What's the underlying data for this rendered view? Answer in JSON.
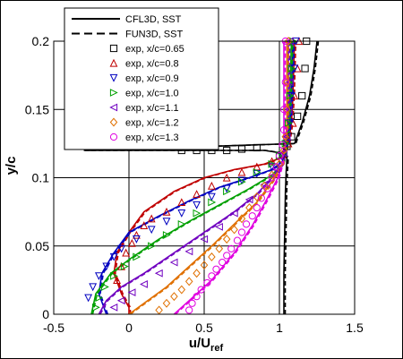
{
  "chart_data": {
    "type": "line",
    "xlabel": "u/U",
    "xlabel_sub": "ref",
    "ylabel": "y/c",
    "xlim": [
      -0.5,
      1.5
    ],
    "ylim": [
      0,
      0.2
    ],
    "x_ticks": [
      -0.5,
      0,
      0.5,
      1,
      1.5
    ],
    "x_tick_labels": [
      "-0.5",
      "0",
      "0.5",
      "1",
      "1.5"
    ],
    "y_ticks": [
      0,
      0.05,
      0.1,
      0.15,
      0.2
    ],
    "y_tick_labels": [
      "0",
      "0.05",
      "0.1",
      "0.15",
      "0.2"
    ],
    "grid": true,
    "legend_position": "top-left",
    "legend": [
      {
        "label": "CFL3D, SST",
        "style": "solid"
      },
      {
        "label": "FUN3D, SST",
        "style": "dashed"
      },
      {
        "label": "exp, x/c=0.65",
        "marker": "square",
        "color": "#000000"
      },
      {
        "label": "exp, x/c=0.8",
        "marker": "triangle-up",
        "color": "#c00000"
      },
      {
        "label": "exp, x/c=0.9",
        "marker": "triangle-down",
        "color": "#0000c0"
      },
      {
        "label": "exp, x/c=1.0",
        "marker": "triangle-right",
        "color": "#00a000"
      },
      {
        "label": "exp, x/c=1.1",
        "marker": "triangle-left",
        "color": "#7000c0"
      },
      {
        "label": "exp, x/c=1.2",
        "marker": "diamond",
        "color": "#e07000"
      },
      {
        "label": "exp, x/c=1.3",
        "marker": "circle",
        "color": "#e000e0"
      }
    ],
    "series": [
      {
        "color": "#000000",
        "marker": "square",
        "line": [
          [
            1.03,
            0.0
          ],
          [
            1.03,
            0.03
          ],
          [
            1.035,
            0.06
          ],
          [
            1.04,
            0.09
          ],
          [
            1.045,
            0.105
          ],
          [
            1.05,
            0.115
          ],
          [
            1.02,
            0.118
          ],
          [
            0.9,
            0.12
          ],
          [
            0.6,
            0.12
          ],
          [
            0,
            0.12
          ],
          [
            -0.3,
            0.12
          ],
          [
            1.1,
            0.125
          ],
          [
            1.15,
            0.14
          ],
          [
            1.2,
            0.16
          ],
          [
            1.23,
            0.18
          ],
          [
            1.25,
            0.2
          ]
        ],
        "exp": [
          [
            0.35,
            0.12
          ],
          [
            0.45,
            0.12
          ],
          [
            0.55,
            0.12
          ],
          [
            0.65,
            0.12
          ],
          [
            0.75,
            0.121
          ],
          [
            0.85,
            0.122
          ],
          [
            1.05,
            0.123
          ],
          [
            1.08,
            0.13
          ],
          [
            1.12,
            0.145
          ],
          [
            1.15,
            0.16
          ],
          [
            1.17,
            0.18
          ],
          [
            1.18,
            0.2
          ]
        ]
      },
      {
        "color": "#c00000",
        "marker": "triangle-up",
        "line": [
          [
            0.0,
            0.0
          ],
          [
            0.0,
            0.005
          ],
          [
            -0.05,
            0.015
          ],
          [
            -0.1,
            0.03
          ],
          [
            -0.08,
            0.045
          ],
          [
            0.0,
            0.06
          ],
          [
            0.1,
            0.075
          ],
          [
            0.3,
            0.09
          ],
          [
            0.5,
            0.1
          ],
          [
            0.7,
            0.106
          ],
          [
            0.9,
            0.11
          ],
          [
            1.02,
            0.115
          ],
          [
            1.06,
            0.125
          ],
          [
            1.08,
            0.14
          ],
          [
            1.09,
            0.16
          ],
          [
            1.1,
            0.2
          ]
        ],
        "exp": [
          [
            -0.08,
            0.025
          ],
          [
            -0.05,
            0.035
          ],
          [
            -0.02,
            0.045
          ],
          [
            0.02,
            0.052
          ],
          [
            0.05,
            0.058
          ],
          [
            0.1,
            0.065
          ],
          [
            0.15,
            0.07
          ],
          [
            0.25,
            0.075
          ],
          [
            0.35,
            0.082
          ],
          [
            0.45,
            0.088
          ],
          [
            0.55,
            0.094
          ],
          [
            0.65,
            0.1
          ],
          [
            0.75,
            0.104
          ],
          [
            0.85,
            0.108
          ],
          [
            0.95,
            0.112
          ],
          [
            1.02,
            0.117
          ],
          [
            1.06,
            0.125
          ],
          [
            1.09,
            0.14
          ],
          [
            1.1,
            0.16
          ],
          [
            1.12,
            0.18
          ],
          [
            1.13,
            0.2
          ]
        ]
      },
      {
        "color": "#0000c0",
        "marker": "triangle-down",
        "line": [
          [
            -0.15,
            0.0
          ],
          [
            -0.2,
            0.015
          ],
          [
            -0.18,
            0.03
          ],
          [
            -0.1,
            0.045
          ],
          [
            0.0,
            0.06
          ],
          [
            0.2,
            0.072
          ],
          [
            0.4,
            0.083
          ],
          [
            0.6,
            0.093
          ],
          [
            0.8,
            0.1
          ],
          [
            0.95,
            0.106
          ],
          [
            1.02,
            0.112
          ],
          [
            1.05,
            0.125
          ],
          [
            1.07,
            0.14
          ],
          [
            1.08,
            0.16
          ],
          [
            1.09,
            0.2
          ]
        ],
        "exp": [
          [
            -0.27,
            0.012
          ],
          [
            -0.24,
            0.02
          ],
          [
            -0.2,
            0.028
          ],
          [
            -0.15,
            0.035
          ],
          [
            -0.1,
            0.042
          ],
          [
            -0.05,
            0.048
          ],
          [
            0.05,
            0.055
          ],
          [
            0.15,
            0.062
          ],
          [
            0.25,
            0.068
          ],
          [
            0.35,
            0.074
          ],
          [
            0.45,
            0.08
          ],
          [
            0.55,
            0.086
          ],
          [
            0.65,
            0.092
          ],
          [
            0.75,
            0.098
          ],
          [
            0.85,
            0.103
          ],
          [
            0.95,
            0.108
          ],
          [
            1.02,
            0.115
          ],
          [
            1.05,
            0.125
          ],
          [
            1.07,
            0.14
          ],
          [
            1.08,
            0.16
          ],
          [
            1.1,
            0.18
          ],
          [
            1.11,
            0.2
          ]
        ]
      },
      {
        "color": "#00a000",
        "marker": "triangle-right",
        "line": [
          [
            -0.25,
            0.0
          ],
          [
            -0.22,
            0.015
          ],
          [
            -0.12,
            0.03
          ],
          [
            0.0,
            0.04
          ],
          [
            0.2,
            0.055
          ],
          [
            0.4,
            0.068
          ],
          [
            0.6,
            0.08
          ],
          [
            0.8,
            0.092
          ],
          [
            0.95,
            0.102
          ],
          [
            1.02,
            0.11
          ],
          [
            1.05,
            0.125
          ],
          [
            1.06,
            0.14
          ],
          [
            1.07,
            0.16
          ],
          [
            1.08,
            0.2
          ]
        ],
        "exp": [
          [
            -0.22,
            0.005
          ],
          [
            -0.2,
            0.012
          ],
          [
            -0.16,
            0.02
          ],
          [
            -0.1,
            0.028
          ],
          [
            -0.03,
            0.035
          ],
          [
            0.05,
            0.042
          ],
          [
            0.15,
            0.05
          ],
          [
            0.25,
            0.058
          ],
          [
            0.35,
            0.066
          ],
          [
            0.45,
            0.074
          ],
          [
            0.55,
            0.082
          ],
          [
            0.65,
            0.09
          ],
          [
            0.75,
            0.097
          ],
          [
            0.85,
            0.104
          ],
          [
            0.95,
            0.11
          ],
          [
            1.0,
            0.116
          ],
          [
            1.04,
            0.125
          ],
          [
            1.06,
            0.14
          ],
          [
            1.07,
            0.16
          ],
          [
            1.08,
            0.18
          ],
          [
            1.09,
            0.2
          ]
        ]
      },
      {
        "color": "#7000c0",
        "marker": "triangle-left",
        "line": [
          [
            -0.2,
            0.0
          ],
          [
            -0.15,
            0.01
          ],
          [
            -0.05,
            0.02
          ],
          [
            0.1,
            0.03
          ],
          [
            0.3,
            0.045
          ],
          [
            0.5,
            0.06
          ],
          [
            0.7,
            0.075
          ],
          [
            0.85,
            0.088
          ],
          [
            0.95,
            0.1
          ],
          [
            1.02,
            0.11
          ],
          [
            1.04,
            0.125
          ],
          [
            1.05,
            0.14
          ],
          [
            1.06,
            0.16
          ],
          [
            1.06,
            0.2
          ]
        ],
        "exp": [
          [
            -0.1,
            0.005
          ],
          [
            -0.05,
            0.01
          ],
          [
            0.02,
            0.016
          ],
          [
            0.1,
            0.022
          ],
          [
            0.2,
            0.03
          ],
          [
            0.3,
            0.038
          ],
          [
            0.4,
            0.046
          ],
          [
            0.5,
            0.055
          ],
          [
            0.6,
            0.064
          ],
          [
            0.7,
            0.074
          ],
          [
            0.8,
            0.084
          ],
          [
            0.9,
            0.095
          ],
          [
            0.98,
            0.106
          ],
          [
            1.03,
            0.118
          ],
          [
            1.05,
            0.13
          ],
          [
            1.06,
            0.15
          ],
          [
            1.07,
            0.17
          ],
          [
            1.07,
            0.2
          ]
        ]
      },
      {
        "color": "#e07000",
        "marker": "diamond",
        "line": [
          [
            0.0,
            0.0
          ],
          [
            0.1,
            0.008
          ],
          [
            0.25,
            0.02
          ],
          [
            0.4,
            0.035
          ],
          [
            0.55,
            0.05
          ],
          [
            0.7,
            0.066
          ],
          [
            0.85,
            0.082
          ],
          [
            0.95,
            0.097
          ],
          [
            1.02,
            0.11
          ],
          [
            1.04,
            0.125
          ],
          [
            1.05,
            0.14
          ],
          [
            1.05,
            0.16
          ],
          [
            1.05,
            0.2
          ]
        ],
        "exp": [
          [
            0.2,
            0.003
          ],
          [
            0.25,
            0.008
          ],
          [
            0.3,
            0.013
          ],
          [
            0.35,
            0.018
          ],
          [
            0.4,
            0.024
          ],
          [
            0.45,
            0.03
          ],
          [
            0.5,
            0.036
          ],
          [
            0.55,
            0.042
          ],
          [
            0.6,
            0.048
          ],
          [
            0.65,
            0.055
          ],
          [
            0.7,
            0.062
          ],
          [
            0.75,
            0.07
          ],
          [
            0.8,
            0.078
          ],
          [
            0.85,
            0.086
          ],
          [
            0.9,
            0.094
          ],
          [
            0.95,
            0.102
          ],
          [
            1.0,
            0.11
          ],
          [
            1.03,
            0.12
          ],
          [
            1.04,
            0.13
          ],
          [
            1.05,
            0.15
          ],
          [
            1.05,
            0.17
          ],
          [
            1.06,
            0.2
          ]
        ]
      },
      {
        "color": "#e000e0",
        "marker": "circle",
        "line": [
          [
            0.3,
            0.0
          ],
          [
            0.4,
            0.01
          ],
          [
            0.55,
            0.025
          ],
          [
            0.7,
            0.045
          ],
          [
            0.82,
            0.065
          ],
          [
            0.92,
            0.085
          ],
          [
            0.99,
            0.1
          ],
          [
            1.02,
            0.112
          ],
          [
            1.03,
            0.125
          ],
          [
            1.03,
            0.14
          ],
          [
            1.03,
            0.16
          ],
          [
            1.03,
            0.2
          ]
        ],
        "exp": [
          [
            0.4,
            0.003
          ],
          [
            0.42,
            0.008
          ],
          [
            0.45,
            0.013
          ],
          [
            0.48,
            0.018
          ],
          [
            0.52,
            0.023
          ],
          [
            0.55,
            0.028
          ],
          [
            0.58,
            0.033
          ],
          [
            0.62,
            0.038
          ],
          [
            0.65,
            0.043
          ],
          [
            0.68,
            0.048
          ],
          [
            0.72,
            0.054
          ],
          [
            0.75,
            0.06
          ],
          [
            0.78,
            0.066
          ],
          [
            0.82,
            0.072
          ],
          [
            0.85,
            0.078
          ],
          [
            0.88,
            0.085
          ],
          [
            0.92,
            0.092
          ],
          [
            0.95,
            0.1
          ],
          [
            0.98,
            0.108
          ],
          [
            1.0,
            0.116
          ],
          [
            1.02,
            0.124
          ],
          [
            1.03,
            0.135
          ],
          [
            1.03,
            0.15
          ],
          [
            1.04,
            0.17
          ],
          [
            1.04,
            0.2
          ]
        ]
      }
    ]
  }
}
